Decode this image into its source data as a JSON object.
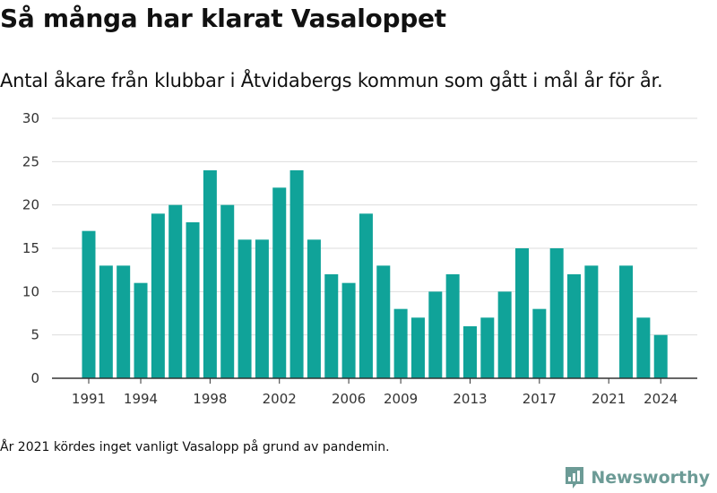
{
  "header": {
    "title": "Så många har klarat Vasaloppet",
    "subtitle": "Antal åkare från klubbar i Åtvidabergs kommun som gått i mål år för år."
  },
  "footer": {
    "note": "År 2021 kördes inget vanligt Vasalopp på grund av pandemin.",
    "brand": "Newsworthy"
  },
  "colors": {
    "bar": "#10a399",
    "grid": "#dddddd",
    "axis": "#333333",
    "brand": "#6c9b96"
  },
  "chart_data": {
    "type": "bar",
    "title": "",
    "xlabel": "",
    "ylabel": "",
    "categories": [
      1991,
      1992,
      1993,
      1994,
      1995,
      1996,
      1997,
      1998,
      1999,
      2000,
      2001,
      2002,
      2003,
      2004,
      2005,
      2006,
      2007,
      2008,
      2009,
      2010,
      2011,
      2012,
      2013,
      2014,
      2015,
      2016,
      2017,
      2018,
      2019,
      2020,
      2021,
      2022,
      2023,
      2024
    ],
    "values": [
      17,
      13,
      13,
      11,
      19,
      20,
      18,
      24,
      20,
      16,
      16,
      22,
      24,
      16,
      12,
      11,
      19,
      13,
      8,
      7,
      10,
      12,
      6,
      7,
      10,
      15,
      8,
      15,
      12,
      13,
      null,
      13,
      7,
      5
    ],
    "x_tick_labels": [
      "1991",
      "1994",
      "1998",
      "2002",
      "2006",
      "2009",
      "2013",
      "2017",
      "2021",
      "2024"
    ],
    "y_ticks": [
      0,
      5,
      10,
      15,
      20,
      25,
      30
    ],
    "ylim": [
      0,
      30
    ],
    "grid": true,
    "legend": "none"
  }
}
